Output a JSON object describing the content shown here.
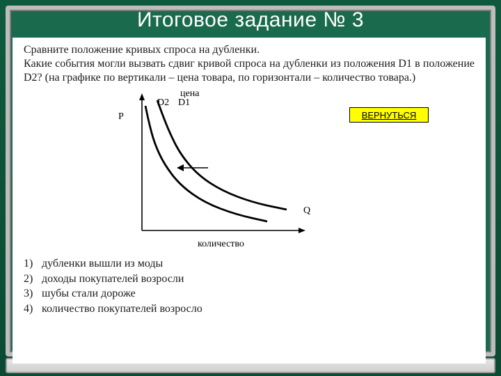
{
  "title": "Итоговое задание № 3",
  "question_lines": [
    "Сравните положение кривых спроса на дубленки.",
    "Какие события могли вызвать сдвиг кривой спроса на дубленки из положения D1 в положение D2? (на графике по вертикали – цена товара, по горизонтали – количество товара.)"
  ],
  "back_button": "ВЕРНУТЬСЯ",
  "chart": {
    "type": "line",
    "x_axis_label": "количество",
    "y_axis_label": "цена",
    "x_letter": "Q",
    "y_letter": "P",
    "curve_labels": [
      "D2",
      "D1"
    ],
    "curves": {
      "D1": [
        [
          62,
          18
        ],
        [
          70,
          40
        ],
        [
          80,
          65
        ],
        [
          95,
          95
        ],
        [
          120,
          125
        ],
        [
          155,
          148
        ],
        [
          200,
          165
        ],
        [
          248,
          175
        ]
      ],
      "D2": [
        [
          45,
          26
        ],
        [
          50,
          50
        ],
        [
          58,
          80
        ],
        [
          72,
          110
        ],
        [
          95,
          140
        ],
        [
          130,
          165
        ],
        [
          175,
          182
        ],
        [
          220,
          192
        ]
      ]
    },
    "arrow": {
      "from": [
        135,
        115
      ],
      "to": [
        90,
        115
      ]
    },
    "axis_color": "#000000",
    "curve_color": "#000000",
    "curve_width": 2.8,
    "background_color": "#ffffff"
  },
  "answers": [
    {
      "n": "1)",
      "text": "дубленки вышли из моды"
    },
    {
      "n": "2)",
      "text": "доходы покупателей возросли"
    },
    {
      "n": "3)",
      "text": "шубы стали дороже"
    },
    {
      "n": "4)",
      "text": "количество покупателей возросло"
    }
  ],
  "colors": {
    "board_green": "#1a6b4d",
    "frame_gray": "#bdbdbd",
    "button_bg": "#ffff00",
    "button_border": "#000000",
    "paper_bg": "#ffffff",
    "text": "#1a1a1a",
    "title_color": "#ffffff"
  },
  "fonts": {
    "title_family": "Arial",
    "title_size_pt": 22,
    "body_family": "Times New Roman",
    "body_size_pt": 12
  }
}
